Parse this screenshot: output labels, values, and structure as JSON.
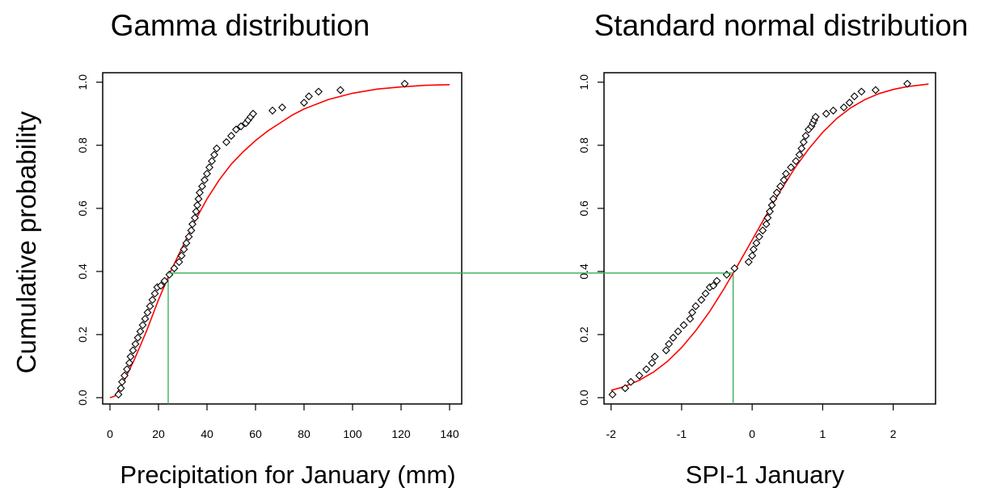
{
  "figure": {
    "ylabel": "Cumulative probability",
    "connector_probability": 0.395,
    "colors": {
      "fit": "#ff0000",
      "connector": "#33aa55",
      "points": "#000000",
      "axes": "#000000"
    }
  },
  "chart_data": [
    {
      "type": "scatter",
      "title": "Gamma distribution",
      "xlabel": "Precipitation for January (mm)",
      "ylabel": "Cumulative probability",
      "xlim": [
        -3,
        145
      ],
      "ylim": [
        -0.02,
        1.03
      ],
      "xticks": [
        0,
        20,
        40,
        60,
        80,
        100,
        120,
        140
      ],
      "yticks": [
        0.0,
        0.2,
        0.4,
        0.6,
        0.8,
        1.0
      ],
      "grid": false,
      "series": [
        {
          "kind": "points",
          "marker": "diamond",
          "x": [
            3.5,
            4.5,
            5.0,
            6.0,
            7.0,
            8.0,
            8.5,
            9.5,
            10.5,
            11.5,
            12.5,
            13.5,
            14.5,
            15.5,
            16.5,
            17.5,
            18.5,
            19.5,
            21.0,
            22.5,
            24.5,
            26.5,
            28.5,
            29.5,
            30.5,
            31.5,
            32.5,
            33.5,
            34.0,
            35.0,
            35.5,
            36.0,
            36.5,
            37.0,
            38.0,
            39.0,
            40.0,
            41.0,
            42.0,
            43.0,
            44.0,
            48.0,
            50.0,
            52.0,
            54.0,
            56.0,
            57.0,
            58.0,
            59.0,
            67.0,
            71.0,
            80.0,
            82.0,
            86.0,
            95.0,
            121.5
          ],
          "y": [
            0.01,
            0.03,
            0.05,
            0.07,
            0.09,
            0.11,
            0.13,
            0.15,
            0.17,
            0.19,
            0.21,
            0.23,
            0.25,
            0.27,
            0.29,
            0.31,
            0.33,
            0.35,
            0.355,
            0.37,
            0.39,
            0.41,
            0.43,
            0.45,
            0.47,
            0.49,
            0.51,
            0.53,
            0.55,
            0.57,
            0.59,
            0.61,
            0.63,
            0.65,
            0.67,
            0.69,
            0.71,
            0.73,
            0.75,
            0.77,
            0.79,
            0.81,
            0.83,
            0.85,
            0.86,
            0.87,
            0.88,
            0.89,
            0.9,
            0.91,
            0.92,
            0.935,
            0.955,
            0.97,
            0.975,
            0.995
          ]
        },
        {
          "kind": "fit",
          "x": [
            0,
            2,
            5,
            10,
            15,
            20,
            25,
            30,
            35,
            40,
            45,
            50,
            55,
            60,
            65,
            70,
            75,
            80,
            90,
            100,
            110,
            120,
            130,
            140
          ],
          "y": [
            0.0,
            0.005,
            0.04,
            0.12,
            0.21,
            0.31,
            0.4,
            0.48,
            0.56,
            0.63,
            0.69,
            0.74,
            0.78,
            0.815,
            0.845,
            0.87,
            0.895,
            0.915,
            0.945,
            0.965,
            0.978,
            0.985,
            0.99,
            0.992
          ]
        }
      ],
      "guide_x": 24
    },
    {
      "type": "scatter",
      "title": "Standard normal distribution",
      "xlabel": "SPI-1 January",
      "ylabel": "",
      "xlim": [
        -2.1,
        2.6
      ],
      "ylim": [
        -0.02,
        1.03
      ],
      "xticks": [
        -2,
        -1,
        0,
        1,
        2
      ],
      "yticks": [
        0.0,
        0.2,
        0.4,
        0.6,
        0.8,
        1.0
      ],
      "grid": false,
      "series": [
        {
          "kind": "points",
          "marker": "diamond",
          "x": [
            -1.98,
            -1.8,
            -1.72,
            -1.6,
            -1.5,
            -1.42,
            -1.38,
            -1.22,
            -1.18,
            -1.12,
            -1.05,
            -0.97,
            -0.88,
            -0.85,
            -0.8,
            -0.72,
            -0.66,
            -0.6,
            -0.55,
            -0.5,
            -0.36,
            -0.25,
            -0.05,
            0.0,
            0.02,
            0.06,
            0.1,
            0.15,
            0.2,
            0.22,
            0.25,
            0.28,
            0.3,
            0.35,
            0.4,
            0.45,
            0.48,
            0.55,
            0.62,
            0.67,
            0.7,
            0.73,
            0.76,
            0.8,
            0.84,
            0.86,
            0.88,
            0.9,
            1.05,
            1.15,
            1.3,
            1.38,
            1.45,
            1.55,
            1.75,
            2.2
          ],
          "y": [
            0.01,
            0.03,
            0.05,
            0.07,
            0.09,
            0.11,
            0.13,
            0.15,
            0.17,
            0.19,
            0.21,
            0.23,
            0.25,
            0.27,
            0.29,
            0.31,
            0.33,
            0.35,
            0.355,
            0.37,
            0.39,
            0.41,
            0.43,
            0.45,
            0.47,
            0.49,
            0.51,
            0.53,
            0.55,
            0.57,
            0.59,
            0.61,
            0.63,
            0.65,
            0.67,
            0.69,
            0.71,
            0.73,
            0.75,
            0.77,
            0.79,
            0.81,
            0.83,
            0.85,
            0.86,
            0.87,
            0.88,
            0.89,
            0.9,
            0.91,
            0.92,
            0.935,
            0.955,
            0.97,
            0.975,
            0.995
          ]
        },
        {
          "kind": "fit",
          "x": [
            -2.0,
            -1.8,
            -1.6,
            -1.4,
            -1.2,
            -1.0,
            -0.8,
            -0.6,
            -0.4,
            -0.2,
            0.0,
            0.2,
            0.4,
            0.6,
            0.8,
            1.0,
            1.2,
            1.4,
            1.6,
            1.8,
            2.0,
            2.2,
            2.5
          ],
          "y": [
            0.023,
            0.036,
            0.055,
            0.081,
            0.115,
            0.159,
            0.212,
            0.274,
            0.345,
            0.421,
            0.5,
            0.579,
            0.655,
            0.726,
            0.788,
            0.841,
            0.885,
            0.919,
            0.945,
            0.964,
            0.977,
            0.986,
            0.994
          ]
        }
      ],
      "guide_x": -0.27
    }
  ]
}
